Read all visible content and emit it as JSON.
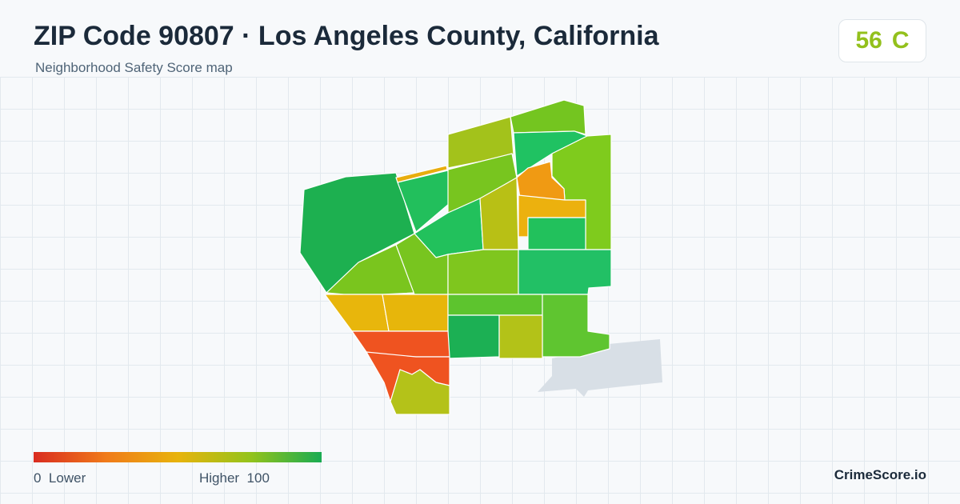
{
  "header": {
    "title": "ZIP Code 90807 · Los Angeles County, California",
    "subtitle": "Neighborhood Safety Score map"
  },
  "score": {
    "value": "56",
    "grade": "C",
    "color": "#93c01c"
  },
  "legend": {
    "low_value": "0",
    "low_label": "Lower",
    "high_label": "Higher",
    "high_value": "100",
    "gradient": [
      "#d92c20",
      "#f07a1a",
      "#e8b30c",
      "#95c31b",
      "#19ab52"
    ]
  },
  "brand": "CrimeScore.io",
  "map": {
    "neighbor_color": "#d8dfe6",
    "regions": [
      {
        "id": "nw-large",
        "color": "#1db050"
      },
      {
        "id": "north-strip",
        "color": "#e8ad0e"
      },
      {
        "id": "upper-mid-left",
        "color": "#22bf5c"
      },
      {
        "id": "top-center",
        "color": "#a3c21b"
      },
      {
        "id": "top-right",
        "color": "#74c520"
      },
      {
        "id": "top-right-inner",
        "color": "#20c262"
      },
      {
        "id": "center-diag",
        "color": "#78c51f"
      },
      {
        "id": "center-band",
        "color": "#22c15c"
      },
      {
        "id": "center-tall",
        "color": "#b8c015"
      },
      {
        "id": "right-upper",
        "color": "#7fcb1d"
      },
      {
        "id": "right-orange",
        "color": "#f09a13"
      },
      {
        "id": "right-orange-lower",
        "color": "#ecb10e"
      },
      {
        "id": "right-mid-green",
        "color": "#22c15c"
      },
      {
        "id": "west-mid",
        "color": "#7ac51e"
      },
      {
        "id": "center-mid-left",
        "color": "#78c51f"
      },
      {
        "id": "center-mid",
        "color": "#7fc61e"
      },
      {
        "id": "right-wide",
        "color": "#22c065"
      },
      {
        "id": "sw-yellow",
        "color": "#e8b60c"
      },
      {
        "id": "south-yellow",
        "color": "#e7b60b"
      },
      {
        "id": "center-lower-strip",
        "color": "#5dc42e"
      },
      {
        "id": "lower-right-green",
        "color": "#5fc530"
      },
      {
        "id": "lower-center-dark",
        "color": "#1cb054"
      },
      {
        "id": "lower-center-olive",
        "color": "#b3c218"
      },
      {
        "id": "sw-red",
        "color": "#ef5320"
      },
      {
        "id": "south-red",
        "color": "#ef5320"
      },
      {
        "id": "south-bottom",
        "color": "#b4c219"
      }
    ]
  }
}
